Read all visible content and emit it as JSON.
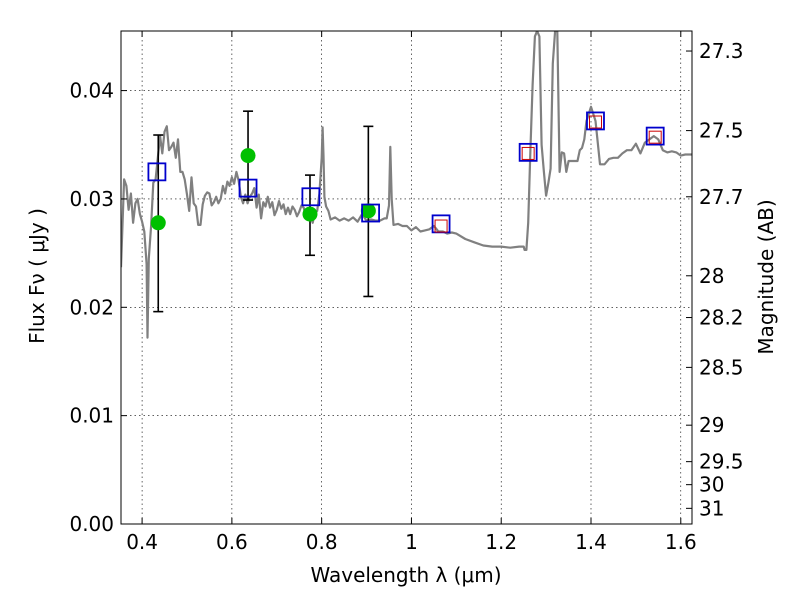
{
  "chart_data": {
    "type": "line",
    "xlabel": "Wavelength  λ (μm)",
    "ylabel": "Flux  Fν  ( μJy )",
    "ylabel_right": "Magnitude (AB)",
    "xlim": [
      0.353,
      1.625
    ],
    "ylim": [
      0.0,
      0.0455
    ],
    "grid": true,
    "x_ticks": [
      0.4,
      0.6,
      0.8,
      1.0,
      1.2,
      1.4,
      1.6
    ],
    "x_tick_labels": [
      "0.4",
      "0.6",
      "0.8",
      "1",
      "1.2",
      "1.4",
      "1.6"
    ],
    "y_ticks": [
      0.0,
      0.01,
      0.02,
      0.03,
      0.04
    ],
    "y_tick_labels": [
      "0.00",
      "0.01",
      "0.02",
      "0.03",
      "0.04"
    ],
    "mag_ticks": [
      27.3,
      27.5,
      27.7,
      28,
      28.2,
      28.5,
      29,
      29.5,
      30,
      31
    ],
    "mag_tick_labels": [
      "27.3",
      "27.5",
      "27.7",
      "28",
      "28.2",
      "28.5",
      "29",
      "29.5",
      "30",
      "31"
    ],
    "series": [
      {
        "kind": "spectrum",
        "color": "#808080",
        "points": [
          [
            0.353,
            0.0237
          ],
          [
            0.36,
            0.0318
          ],
          [
            0.365,
            0.0312
          ],
          [
            0.37,
            0.029
          ],
          [
            0.375,
            0.0305
          ],
          [
            0.38,
            0.0278
          ],
          [
            0.385,
            0.0296
          ],
          [
            0.39,
            0.03
          ],
          [
            0.395,
            0.0286
          ],
          [
            0.4,
            0.0279
          ],
          [
            0.405,
            0.027
          ],
          [
            0.41,
            0.024
          ],
          [
            0.412,
            0.0172
          ],
          [
            0.415,
            0.0245
          ],
          [
            0.42,
            0.0275
          ],
          [
            0.425,
            0.0315
          ],
          [
            0.43,
            0.0318
          ],
          [
            0.435,
            0.0338
          ],
          [
            0.44,
            0.0358
          ],
          [
            0.445,
            0.0342
          ],
          [
            0.45,
            0.0362
          ],
          [
            0.455,
            0.0367
          ],
          [
            0.46,
            0.0345
          ],
          [
            0.465,
            0.0348
          ],
          [
            0.47,
            0.0352
          ],
          [
            0.475,
            0.0338
          ],
          [
            0.48,
            0.0355
          ],
          [
            0.485,
            0.0325
          ],
          [
            0.49,
            0.0325
          ],
          [
            0.495,
            0.0318
          ],
          [
            0.5,
            0.0304
          ],
          [
            0.505,
            0.0289
          ],
          [
            0.51,
            0.032
          ],
          [
            0.515,
            0.0296
          ],
          [
            0.52,
            0.0293
          ],
          [
            0.525,
            0.0276
          ],
          [
            0.53,
            0.0276
          ],
          [
            0.535,
            0.0295
          ],
          [
            0.54,
            0.0303
          ],
          [
            0.545,
            0.0306
          ],
          [
            0.55,
            0.0305
          ],
          [
            0.555,
            0.0294
          ],
          [
            0.56,
            0.0297
          ],
          [
            0.565,
            0.0302
          ],
          [
            0.57,
            0.0296
          ],
          [
            0.575,
            0.03
          ],
          [
            0.58,
            0.0312
          ],
          [
            0.585,
            0.0305
          ],
          [
            0.59,
            0.0316
          ],
          [
            0.595,
            0.0312
          ],
          [
            0.6,
            0.032
          ],
          [
            0.605,
            0.0314
          ],
          [
            0.61,
            0.0325
          ],
          [
            0.615,
            0.0317
          ],
          [
            0.62,
            0.0302
          ],
          [
            0.625,
            0.0296
          ],
          [
            0.63,
            0.0304
          ],
          [
            0.635,
            0.0296
          ],
          [
            0.64,
            0.0302
          ],
          [
            0.645,
            0.0305
          ],
          [
            0.65,
            0.031
          ],
          [
            0.655,
            0.0292
          ],
          [
            0.66,
            0.0304
          ],
          [
            0.665,
            0.0282
          ],
          [
            0.67,
            0.0297
          ],
          [
            0.675,
            0.0293
          ],
          [
            0.68,
            0.0302
          ],
          [
            0.685,
            0.0292
          ],
          [
            0.69,
            0.0297
          ],
          [
            0.695,
            0.0285
          ],
          [
            0.7,
            0.029
          ],
          [
            0.705,
            0.0298
          ],
          [
            0.71,
            0.0291
          ],
          [
            0.715,
            0.0295
          ],
          [
            0.72,
            0.0286
          ],
          [
            0.725,
            0.0292
          ],
          [
            0.73,
            0.0286
          ],
          [
            0.735,
            0.0293
          ],
          [
            0.74,
            0.029
          ],
          [
            0.745,
            0.0284
          ],
          [
            0.75,
            0.0288
          ],
          [
            0.755,
            0.0294
          ],
          [
            0.76,
            0.0292
          ],
          [
            0.765,
            0.0283
          ],
          [
            0.77,
            0.0286
          ],
          [
            0.775,
            0.0285
          ],
          [
            0.78,
            0.0278
          ],
          [
            0.785,
            0.0287
          ],
          [
            0.79,
            0.0289
          ],
          [
            0.795,
            0.0305
          ],
          [
            0.8,
            0.0338
          ],
          [
            0.802,
            0.0366
          ],
          [
            0.804,
            0.034
          ],
          [
            0.806,
            0.0302
          ],
          [
            0.81,
            0.0293
          ],
          [
            0.815,
            0.0289
          ],
          [
            0.82,
            0.0281
          ],
          [
            0.83,
            0.0283
          ],
          [
            0.84,
            0.028
          ],
          [
            0.85,
            0.0282
          ],
          [
            0.86,
            0.028
          ],
          [
            0.87,
            0.0283
          ],
          [
            0.88,
            0.0279
          ],
          [
            0.89,
            0.0286
          ],
          [
            0.9,
            0.028
          ],
          [
            0.91,
            0.0281
          ],
          [
            0.92,
            0.028
          ],
          [
            0.93,
            0.028
          ],
          [
            0.94,
            0.0282
          ],
          [
            0.945,
            0.0282
          ],
          [
            0.95,
            0.0294
          ],
          [
            0.953,
            0.0348
          ],
          [
            0.956,
            0.03
          ],
          [
            0.96,
            0.0276
          ],
          [
            0.97,
            0.0277
          ],
          [
            0.98,
            0.0275
          ],
          [
            0.99,
            0.0275
          ],
          [
            1.0,
            0.0271
          ],
          [
            1.01,
            0.0274
          ],
          [
            1.02,
            0.027
          ],
          [
            1.03,
            0.0271
          ],
          [
            1.04,
            0.0272
          ],
          [
            1.05,
            0.0275
          ],
          [
            1.06,
            0.027
          ],
          [
            1.07,
            0.027
          ],
          [
            1.08,
            0.0268
          ],
          [
            1.09,
            0.0269
          ],
          [
            1.1,
            0.0268
          ],
          [
            1.12,
            0.0263
          ],
          [
            1.14,
            0.026
          ],
          [
            1.16,
            0.0257
          ],
          [
            1.18,
            0.0256
          ],
          [
            1.2,
            0.0256
          ],
          [
            1.22,
            0.0255
          ],
          [
            1.24,
            0.0256
          ],
          [
            1.25,
            0.0256
          ],
          [
            1.252,
            0.0253
          ],
          [
            1.256,
            0.0253
          ],
          [
            1.26,
            0.0278
          ],
          [
            1.265,
            0.0345
          ],
          [
            1.27,
            0.0405
          ],
          [
            1.275,
            0.045
          ],
          [
            1.28,
            0.0455
          ],
          [
            1.285,
            0.045
          ],
          [
            1.29,
            0.035
          ],
          [
            1.295,
            0.0325
          ],
          [
            1.3,
            0.0303
          ],
          [
            1.305,
            0.0315
          ],
          [
            1.31,
            0.0328
          ],
          [
            1.315,
            0.0425
          ],
          [
            1.32,
            0.0455
          ],
          [
            1.322,
            0.0455
          ],
          [
            1.325,
            0.0455
          ],
          [
            1.33,
            0.0325
          ],
          [
            1.335,
            0.0343
          ],
          [
            1.34,
            0.0342
          ],
          [
            1.345,
            0.0325
          ],
          [
            1.35,
            0.0335
          ],
          [
            1.36,
            0.0335
          ],
          [
            1.37,
            0.0335
          ],
          [
            1.375,
            0.0345
          ],
          [
            1.38,
            0.0347
          ],
          [
            1.385,
            0.0355
          ],
          [
            1.39,
            0.0372
          ],
          [
            1.4,
            0.0385
          ],
          [
            1.41,
            0.0372
          ],
          [
            1.42,
            0.0332
          ],
          [
            1.43,
            0.0332
          ],
          [
            1.44,
            0.0337
          ],
          [
            1.45,
            0.0338
          ],
          [
            1.46,
            0.0338
          ],
          [
            1.47,
            0.0342
          ],
          [
            1.48,
            0.0345
          ],
          [
            1.49,
            0.0345
          ],
          [
            1.5,
            0.0351
          ],
          [
            1.51,
            0.0342
          ],
          [
            1.52,
            0.0352
          ],
          [
            1.53,
            0.0355
          ],
          [
            1.54,
            0.0358
          ],
          [
            1.55,
            0.0355
          ],
          [
            1.56,
            0.0345
          ],
          [
            1.57,
            0.0343
          ],
          [
            1.58,
            0.0344
          ],
          [
            1.59,
            0.0343
          ],
          [
            1.6,
            0.034
          ],
          [
            1.61,
            0.0341
          ],
          [
            1.625,
            0.0341
          ]
        ]
      },
      {
        "kind": "photometry",
        "color": "#00c000",
        "points": [
          {
            "x": 0.436,
            "y": 0.0278,
            "err_low": 0.0196,
            "err_high": 0.0359
          },
          {
            "x": 0.636,
            "y": 0.034,
            "err_low": 0.0299,
            "err_high": 0.0381
          },
          {
            "x": 0.774,
            "y": 0.0286,
            "err_low": 0.0248,
            "err_high": 0.0322
          },
          {
            "x": 0.904,
            "y": 0.0289,
            "err_low": 0.021,
            "err_high": 0.0367
          }
        ]
      },
      {
        "kind": "model-photometry",
        "color": "#0000cc",
        "points": [
          {
            "x": 0.433,
            "y": 0.0325
          },
          {
            "x": 0.636,
            "y": 0.031
          },
          {
            "x": 0.776,
            "y": 0.0302
          },
          {
            "x": 0.909,
            "y": 0.0287
          },
          {
            "x": 1.066,
            "y": 0.0277
          },
          {
            "x": 1.26,
            "y": 0.0343
          },
          {
            "x": 1.41,
            "y": 0.0372
          },
          {
            "x": 1.543,
            "y": 0.0358
          }
        ]
      },
      {
        "kind": "observed-photometry",
        "color": "#cc0000",
        "points": [
          {
            "x": 1.066,
            "y": 0.0275
          },
          {
            "x": 1.26,
            "y": 0.0342
          },
          {
            "x": 1.41,
            "y": 0.0371
          },
          {
            "x": 1.543,
            "y": 0.0357
          }
        ]
      }
    ]
  }
}
